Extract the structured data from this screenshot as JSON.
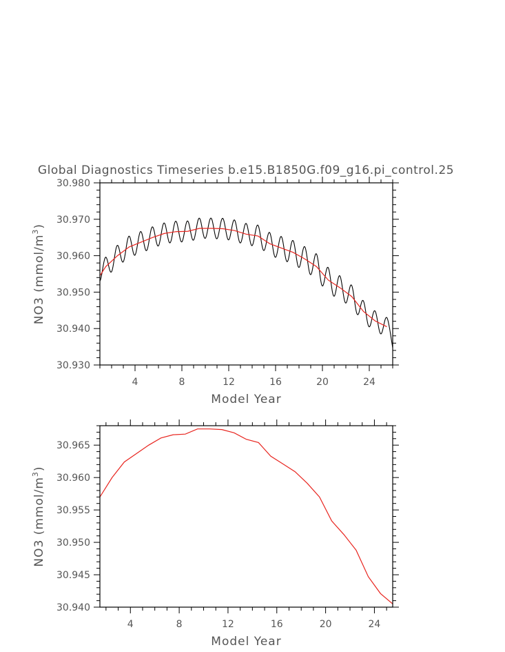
{
  "chart_data": [
    {
      "type": "line",
      "title": "Global Diagnostics Timeseries b.e15.B1850G.f09_g16.pi_control.25",
      "xlabel": "Model Year",
      "ylabel": "NO3 (mmol/m³)",
      "ylabel_base": "NO3 (mmol/m",
      "ylabel_sup": "3",
      "ylabel_tail": ")",
      "xlim": [
        1,
        26
      ],
      "ylim": [
        30.93,
        30.98
      ],
      "xticks": [
        4,
        8,
        12,
        16,
        20,
        24
      ],
      "xtick_labels": [
        "4",
        "8",
        "12",
        "16",
        "20",
        "24"
      ],
      "yticks": [
        30.93,
        30.94,
        30.95,
        30.96,
        30.97,
        30.98
      ],
      "ytick_labels": [
        "30.930",
        "30.940",
        "30.950",
        "30.960",
        "30.970",
        "30.980"
      ],
      "grid": false,
      "series": [
        {
          "kind": "monthly",
          "color": "#000000",
          "seasonal_amplitude": [
            [
              1.0,
              0.0025
            ],
            [
              3.0,
              0.003
            ],
            [
              10.0,
              0.0028
            ],
            [
              15.0,
              0.003
            ],
            [
              20.0,
              0.0035
            ],
            [
              25.7,
              0.0025
            ]
          ]
        },
        {
          "kind": "annual-mean",
          "color": "#e8241e",
          "x": [
            1.5,
            2.5,
            3.5,
            4.5,
            5.5,
            6.5,
            7.5,
            8.5,
            9.5,
            10.5,
            11.5,
            12.5,
            13.5,
            14.5,
            15.5,
            16.5,
            17.5,
            18.5,
            19.5,
            20.5,
            21.5,
            22.5,
            23.5,
            24.5,
            25.5
          ],
          "y": [
            30.957,
            30.96,
            30.9624,
            30.9637,
            30.965,
            30.9661,
            30.9666,
            30.9667,
            30.9675,
            30.9675,
            30.9674,
            30.9669,
            30.9659,
            30.9654,
            30.9633,
            30.9621,
            30.9609,
            30.9591,
            30.957,
            30.9533,
            30.9512,
            30.9488,
            30.9447,
            30.9421,
            30.9405
          ]
        }
      ]
    },
    {
      "type": "line",
      "title": "",
      "xlabel": "Model Year",
      "ylabel": "NO3 (mmol/m³)",
      "ylabel_base": "NO3 (mmol/m",
      "ylabel_sup": "3",
      "ylabel_tail": ")",
      "xlim": [
        1.5,
        25.5
      ],
      "ylim": [
        30.94,
        30.968
      ],
      "xticks": [
        4,
        8,
        12,
        16,
        20,
        24
      ],
      "xtick_labels": [
        "4",
        "8",
        "12",
        "16",
        "20",
        "24"
      ],
      "yticks": [
        30.94,
        30.945,
        30.95,
        30.955,
        30.96,
        30.965
      ],
      "ytick_labels": [
        "30.940",
        "30.945",
        "30.950",
        "30.955",
        "30.960",
        "30.965"
      ],
      "grid": false,
      "series": [
        {
          "kind": "annual-mean",
          "color": "#e8241e",
          "x": [
            1.5,
            2.5,
            3.5,
            4.5,
            5.5,
            6.5,
            7.5,
            8.5,
            9.5,
            10.5,
            11.5,
            12.5,
            13.5,
            14.5,
            15.5,
            16.5,
            17.5,
            18.5,
            19.5,
            20.5,
            21.5,
            22.5,
            23.5,
            24.5,
            25.5
          ],
          "y": [
            30.957,
            30.96,
            30.9624,
            30.9637,
            30.965,
            30.9661,
            30.9666,
            30.9667,
            30.9675,
            30.9675,
            30.9674,
            30.9669,
            30.9659,
            30.9654,
            30.9633,
            30.9621,
            30.9609,
            30.9591,
            30.957,
            30.9533,
            30.9512,
            30.9488,
            30.9447,
            30.9421,
            30.9405
          ]
        }
      ]
    }
  ]
}
